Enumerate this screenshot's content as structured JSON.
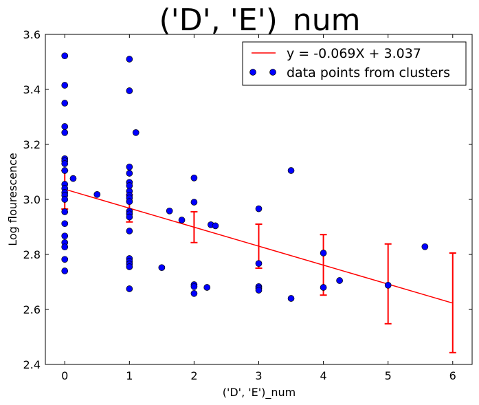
{
  "chart_data": {
    "type": "scatter",
    "title": "('D', 'E')_num",
    "xlabel": "('D', 'E')_num",
    "ylabel": "Log flourescence",
    "xlim": [
      -0.3,
      6.3
    ],
    "ylim": [
      2.4,
      3.6
    ],
    "xticks": [
      "0",
      "1",
      "2",
      "3",
      "4",
      "5",
      "6"
    ],
    "yticks": [
      "2.4",
      "2.6",
      "2.8",
      "3.0",
      "3.2",
      "3.4",
      "3.6"
    ],
    "grid": false,
    "legend_position": "top-right",
    "fit_line": {
      "label": "y = -0.069X + 3.037",
      "slope": -0.069,
      "intercept": 3.037,
      "x_range": [
        0,
        6
      ],
      "color": "#ff0000"
    },
    "error_bars": [
      {
        "x": 0,
        "y": 3.037,
        "low": 2.965,
        "high": 3.105
      },
      {
        "x": 1,
        "y": 2.968,
        "low": 2.918,
        "high": 3.018
      },
      {
        "x": 2,
        "y": 2.899,
        "low": 2.843,
        "high": 2.955
      },
      {
        "x": 3,
        "y": 2.83,
        "low": 2.75,
        "high": 2.91
      },
      {
        "x": 4,
        "y": 2.761,
        "low": 2.652,
        "high": 2.872
      },
      {
        "x": 5,
        "y": 2.692,
        "low": 2.548,
        "high": 2.838
      },
      {
        "x": 6,
        "y": 2.623,
        "low": 2.443,
        "high": 2.805
      }
    ],
    "series": [
      {
        "name": "data points from clusters",
        "color": "#0000ff",
        "points": [
          [
            0,
            3.522
          ],
          [
            0,
            3.415
          ],
          [
            0,
            3.35
          ],
          [
            0,
            3.265
          ],
          [
            0,
            3.243
          ],
          [
            0,
            3.148
          ],
          [
            0,
            3.14
          ],
          [
            0,
            3.13
          ],
          [
            0,
            3.105
          ],
          [
            0,
            3.055
          ],
          [
            0,
            3.04
          ],
          [
            0,
            3.025
          ],
          [
            0,
            3.015
          ],
          [
            0,
            3.0
          ],
          [
            0,
            2.955
          ],
          [
            0,
            2.912
          ],
          [
            0,
            2.867
          ],
          [
            0,
            2.843
          ],
          [
            0,
            2.827
          ],
          [
            0,
            2.782
          ],
          [
            0,
            2.74
          ],
          [
            0.13,
            3.076
          ],
          [
            0.5,
            3.018
          ],
          [
            1,
            3.51
          ],
          [
            1,
            3.395
          ],
          [
            1,
            3.118
          ],
          [
            1,
            3.095
          ],
          [
            1,
            3.062
          ],
          [
            1,
            3.05
          ],
          [
            1,
            3.03
          ],
          [
            1,
            3.015
          ],
          [
            1,
            3.005
          ],
          [
            1,
            2.992
          ],
          [
            1,
            2.957
          ],
          [
            1,
            2.947
          ],
          [
            1,
            2.936
          ],
          [
            1,
            2.885
          ],
          [
            1,
            2.785
          ],
          [
            1,
            2.775
          ],
          [
            1,
            2.765
          ],
          [
            1,
            2.755
          ],
          [
            1,
            2.675
          ],
          [
            1.1,
            3.243
          ],
          [
            1.5,
            2.752
          ],
          [
            1.62,
            2.958
          ],
          [
            1.81,
            2.925
          ],
          [
            2,
            3.078
          ],
          [
            2,
            2.99
          ],
          [
            2,
            2.69
          ],
          [
            2,
            2.683
          ],
          [
            2,
            2.658
          ],
          [
            2.2,
            2.68
          ],
          [
            2.26,
            2.908
          ],
          [
            2.33,
            2.904
          ],
          [
            3,
            2.966
          ],
          [
            3,
            2.767
          ],
          [
            3,
            2.683
          ],
          [
            3,
            2.677
          ],
          [
            3,
            2.67
          ],
          [
            3.5,
            3.105
          ],
          [
            3.5,
            2.64
          ],
          [
            4,
            2.805
          ],
          [
            4,
            2.68
          ],
          [
            4.25,
            2.705
          ],
          [
            5,
            2.688
          ],
          [
            5.57,
            2.828
          ]
        ]
      }
    ]
  }
}
